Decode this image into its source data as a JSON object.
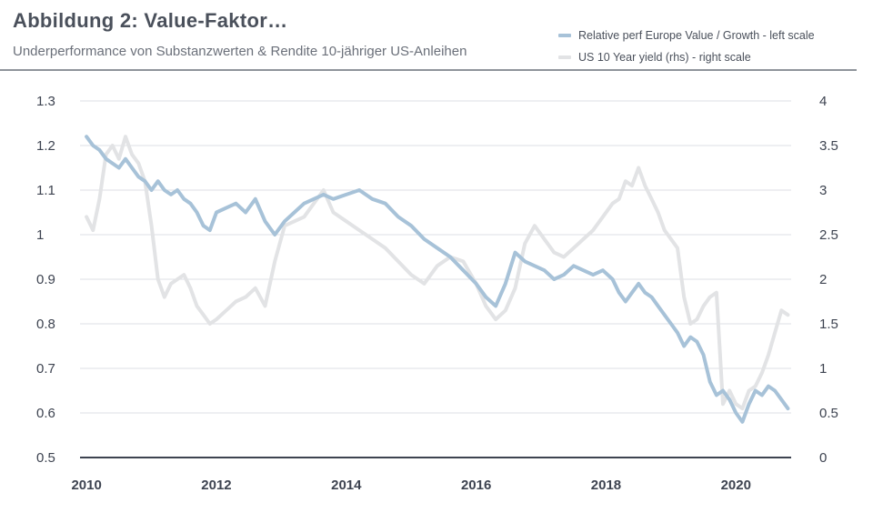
{
  "header": {
    "title": "Abbildung 2: Value-Faktor…",
    "subtitle": "Underperformance von Substanzwerten & Rendite 10-jähriger US-Anleihen"
  },
  "colors": {
    "value_growth": "#a7c2d8",
    "us_yield": "#e2e3e5",
    "grid": "#dcdfe4",
    "axis": "#3d4350"
  },
  "chart_data": {
    "type": "line",
    "title": "Abbildung 2: Value-Faktor…",
    "subtitle": "Underperformance von Substanzwerten & Rendite 10-jähriger US-Anleihen",
    "xlim": [
      2009.9,
      2020.85
    ],
    "x_ticks": [
      "2010",
      "2012",
      "2014",
      "2016",
      "2018",
      "2020"
    ],
    "x_tick_values": [
      2010,
      2012,
      2014,
      2016,
      2018,
      2020
    ],
    "left_axis": {
      "label": "Relative perf Europe Value / Growth - left scale",
      "ylim": [
        0.5,
        1.3
      ],
      "ticks": [
        "0.5",
        "0.6",
        "0.7",
        "0.8",
        "0.9",
        "1",
        "1.1",
        "1.2",
        "1.3"
      ],
      "tick_values": [
        0.5,
        0.6,
        0.7,
        0.8,
        0.9,
        1.0,
        1.1,
        1.2,
        1.3
      ]
    },
    "right_axis": {
      "label": "US 10 Year yield (rhs) - right scale",
      "ylim": [
        0,
        4
      ],
      "ticks": [
        "0",
        "0.5",
        "1",
        "1.5",
        "2",
        "2.5",
        "3",
        "3.5",
        "4"
      ],
      "tick_values": [
        0,
        0.5,
        1,
        1.5,
        2,
        2.5,
        3,
        3.5,
        4
      ]
    },
    "grid": true,
    "legend_position": "top-right",
    "series": [
      {
        "name": "US 10 Year yield (rhs) - right scale",
        "axis": "right",
        "x": [
          2010.0,
          2010.1,
          2010.2,
          2010.3,
          2010.4,
          2010.5,
          2010.6,
          2010.7,
          2010.8,
          2010.9,
          2011.0,
          2011.1,
          2011.2,
          2011.3,
          2011.4,
          2011.5,
          2011.6,
          2011.7,
          2011.8,
          2011.9,
          2012.0,
          2012.15,
          2012.3,
          2012.45,
          2012.6,
          2012.75,
          2012.9,
          2013.05,
          2013.2,
          2013.35,
          2013.5,
          2013.65,
          2013.8,
          2014.0,
          2014.2,
          2014.4,
          2014.6,
          2014.8,
          2015.0,
          2015.2,
          2015.4,
          2015.6,
          2015.8,
          2016.0,
          2016.15,
          2016.3,
          2016.45,
          2016.6,
          2016.75,
          2016.9,
          2017.05,
          2017.2,
          2017.35,
          2017.5,
          2017.65,
          2017.8,
          2017.95,
          2018.1,
          2018.2,
          2018.3,
          2018.4,
          2018.5,
          2018.6,
          2018.7,
          2018.8,
          2018.9,
          2019.0,
          2019.1,
          2019.2,
          2019.3,
          2019.4,
          2019.5,
          2019.6,
          2019.7,
          2019.8,
          2019.9,
          2020.0,
          2020.1,
          2020.2,
          2020.3,
          2020.4,
          2020.5,
          2020.6,
          2020.7,
          2020.8
        ],
        "y": [
          2.7,
          2.55,
          2.9,
          3.4,
          3.5,
          3.35,
          3.6,
          3.4,
          3.3,
          3.1,
          2.6,
          2.0,
          1.8,
          1.95,
          2.0,
          2.05,
          1.9,
          1.7,
          1.6,
          1.5,
          1.55,
          1.65,
          1.75,
          1.8,
          1.9,
          1.7,
          2.2,
          2.6,
          2.65,
          2.7,
          2.85,
          3.0,
          2.75,
          2.65,
          2.55,
          2.45,
          2.35,
          2.2,
          2.05,
          1.95,
          2.15,
          2.25,
          2.2,
          1.95,
          1.7,
          1.55,
          1.65,
          1.9,
          2.4,
          2.6,
          2.45,
          2.3,
          2.25,
          2.35,
          2.45,
          2.55,
          2.7,
          2.85,
          2.9,
          3.1,
          3.05,
          3.25,
          3.05,
          2.9,
          2.75,
          2.55,
          2.45,
          2.35,
          1.8,
          1.5,
          1.55,
          1.7,
          1.8,
          1.85,
          0.6,
          0.75,
          0.6,
          0.55,
          0.75,
          0.8,
          0.95,
          1.15,
          1.4,
          1.65,
          1.6
        ]
      },
      {
        "name": "Relative perf Europe Value / Growth - left scale",
        "axis": "left",
        "x": [
          2010.0,
          2010.1,
          2010.2,
          2010.3,
          2010.4,
          2010.5,
          2010.6,
          2010.7,
          2010.8,
          2010.9,
          2011.0,
          2011.1,
          2011.2,
          2011.3,
          2011.4,
          2011.5,
          2011.6,
          2011.7,
          2011.8,
          2011.9,
          2012.0,
          2012.15,
          2012.3,
          2012.45,
          2012.6,
          2012.75,
          2012.9,
          2013.05,
          2013.2,
          2013.35,
          2013.5,
          2013.65,
          2013.8,
          2014.0,
          2014.2,
          2014.4,
          2014.6,
          2014.8,
          2015.0,
          2015.2,
          2015.4,
          2015.6,
          2015.8,
          2016.0,
          2016.15,
          2016.3,
          2016.45,
          2016.6,
          2016.75,
          2016.9,
          2017.05,
          2017.2,
          2017.35,
          2017.5,
          2017.65,
          2017.8,
          2017.95,
          2018.1,
          2018.2,
          2018.3,
          2018.4,
          2018.5,
          2018.6,
          2018.7,
          2018.8,
          2018.9,
          2019.0,
          2019.1,
          2019.2,
          2019.3,
          2019.4,
          2019.5,
          2019.6,
          2019.7,
          2019.8,
          2019.9,
          2020.0,
          2020.1,
          2020.2,
          2020.3,
          2020.4,
          2020.5,
          2020.6,
          2020.7,
          2020.8
        ],
        "y": [
          1.22,
          1.2,
          1.19,
          1.17,
          1.16,
          1.15,
          1.17,
          1.15,
          1.13,
          1.12,
          1.1,
          1.12,
          1.1,
          1.09,
          1.1,
          1.08,
          1.07,
          1.05,
          1.02,
          1.01,
          1.05,
          1.06,
          1.07,
          1.05,
          1.08,
          1.03,
          1.0,
          1.03,
          1.05,
          1.07,
          1.08,
          1.09,
          1.08,
          1.09,
          1.1,
          1.08,
          1.07,
          1.04,
          1.02,
          0.99,
          0.97,
          0.95,
          0.92,
          0.89,
          0.86,
          0.84,
          0.89,
          0.96,
          0.94,
          0.93,
          0.92,
          0.9,
          0.91,
          0.93,
          0.92,
          0.91,
          0.92,
          0.9,
          0.87,
          0.85,
          0.87,
          0.89,
          0.87,
          0.86,
          0.84,
          0.82,
          0.8,
          0.78,
          0.75,
          0.77,
          0.76,
          0.73,
          0.67,
          0.64,
          0.65,
          0.63,
          0.6,
          0.58,
          0.62,
          0.65,
          0.64,
          0.66,
          0.65,
          0.63,
          0.61
        ]
      }
    ]
  }
}
